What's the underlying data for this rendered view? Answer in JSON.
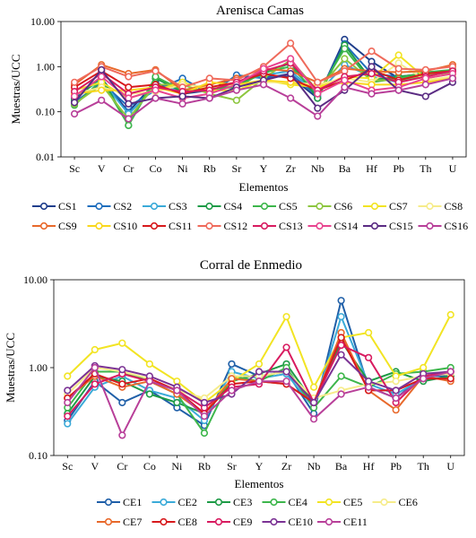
{
  "chart_data": [
    {
      "type": "line",
      "title": "Arenisca Camas",
      "xlabel": "Elementos",
      "ylabel": "Muestras/UCC",
      "yscale": "log",
      "ylim": [
        0.01,
        10
      ],
      "yticks": [
        "0.01",
        "0.10",
        "1.00",
        "10.00"
      ],
      "categories": [
        "Sc",
        "V",
        "Cr",
        "Co",
        "Ni",
        "Rb",
        "Sr",
        "Y",
        "Zr",
        "Nb",
        "Ba",
        "Hf",
        "Pb",
        "Th",
        "U"
      ],
      "legend_position": "bottom",
      "series": [
        {
          "name": "CS1",
          "color": "#1f3e8c",
          "values": [
            0.2,
            0.55,
            0.1,
            0.45,
            0.25,
            0.3,
            0.6,
            0.6,
            0.6,
            0.2,
            4.0,
            1.3,
            0.55,
            0.75,
            0.75
          ]
        },
        {
          "name": "CS2",
          "color": "#1f6ebd",
          "values": [
            0.16,
            0.45,
            0.13,
            0.3,
            0.55,
            0.25,
            0.65,
            0.55,
            0.7,
            0.22,
            3.2,
            0.7,
            0.6,
            0.7,
            0.8
          ]
        },
        {
          "name": "CS3",
          "color": "#3aaad8",
          "values": [
            0.22,
            0.5,
            0.09,
            0.35,
            0.3,
            0.28,
            0.45,
            0.65,
            0.8,
            0.25,
            1.1,
            0.6,
            0.45,
            0.65,
            0.75
          ]
        },
        {
          "name": "CS4",
          "color": "#1e9b47",
          "values": [
            0.18,
            0.6,
            0.05,
            0.55,
            0.28,
            0.3,
            0.4,
            0.7,
            1.2,
            0.2,
            3.0,
            0.5,
            0.6,
            0.7,
            0.8
          ]
        },
        {
          "name": "CS5",
          "color": "#3db64b",
          "values": [
            0.14,
            0.5,
            0.05,
            0.6,
            0.3,
            0.32,
            0.35,
            0.75,
            1.0,
            0.25,
            2.5,
            0.45,
            0.55,
            0.75,
            0.85
          ]
        },
        {
          "name": "CS6",
          "color": "#8dc63f",
          "values": [
            0.15,
            0.4,
            0.07,
            0.4,
            0.4,
            0.25,
            0.18,
            0.55,
            1.4,
            0.3,
            1.5,
            0.5,
            0.5,
            0.65,
            0.75
          ]
        },
        {
          "name": "CS7",
          "color": "#f2e423",
          "values": [
            0.3,
            0.45,
            0.2,
            0.3,
            0.45,
            0.3,
            0.3,
            0.5,
            0.4,
            0.35,
            0.6,
            0.55,
            1.8,
            0.55,
            0.7
          ]
        },
        {
          "name": "CS8",
          "color": "#f6ec8a",
          "values": [
            0.25,
            0.35,
            0.25,
            0.28,
            0.4,
            0.35,
            0.4,
            0.45,
            0.45,
            0.4,
            0.55,
            0.45,
            1.2,
            0.5,
            0.6
          ]
        },
        {
          "name": "CS9",
          "color": "#e8692b",
          "values": [
            0.4,
            1.1,
            0.7,
            0.85,
            0.3,
            0.4,
            0.55,
            0.9,
            0.8,
            0.45,
            0.9,
            0.8,
            0.75,
            0.8,
            1.1
          ]
        },
        {
          "name": "CS10",
          "color": "#f9d71c",
          "values": [
            0.25,
            0.3,
            0.3,
            0.35,
            0.25,
            0.45,
            0.4,
            0.5,
            0.45,
            0.35,
            0.45,
            0.4,
            0.4,
            0.45,
            0.55
          ]
        },
        {
          "name": "CS11",
          "color": "#d7191c",
          "values": [
            0.35,
            0.8,
            0.35,
            0.4,
            0.25,
            0.35,
            0.45,
            0.7,
            0.55,
            0.3,
            0.5,
            0.85,
            0.5,
            0.7,
            0.8
          ]
        },
        {
          "name": "CS12",
          "color": "#ef6a5b",
          "values": [
            0.45,
            1.0,
            0.6,
            0.8,
            0.35,
            0.55,
            0.5,
            1.0,
            3.3,
            0.45,
            0.8,
            2.2,
            0.9,
            0.85,
            1.0
          ]
        },
        {
          "name": "CS13",
          "color": "#d81b60",
          "values": [
            0.28,
            0.7,
            0.25,
            0.35,
            0.28,
            0.3,
            0.45,
            0.8,
            1.2,
            0.3,
            0.6,
            0.7,
            0.45,
            0.6,
            0.8
          ]
        },
        {
          "name": "CS14",
          "color": "#e8448f",
          "values": [
            0.22,
            0.6,
            0.2,
            0.3,
            0.2,
            0.25,
            0.4,
            0.9,
            1.5,
            0.25,
            0.5,
            0.3,
            0.35,
            0.55,
            0.7
          ]
        },
        {
          "name": "CS15",
          "color": "#5b2c83",
          "values": [
            0.16,
            0.85,
            0.15,
            0.2,
            0.22,
            0.2,
            0.35,
            0.5,
            0.7,
            0.12,
            0.3,
            1.0,
            0.3,
            0.22,
            0.45
          ]
        },
        {
          "name": "CS16",
          "color": "#b83f99",
          "values": [
            0.09,
            0.18,
            0.07,
            0.2,
            0.15,
            0.2,
            0.3,
            0.4,
            0.2,
            0.08,
            0.35,
            0.25,
            0.3,
            0.4,
            0.55
          ]
        }
      ]
    },
    {
      "type": "line",
      "title": "Corral de Enmedio",
      "xlabel": "Elementos",
      "ylabel": "Muestras/UCC",
      "yscale": "log",
      "ylim": [
        0.1,
        10
      ],
      "yticks": [
        "0.10",
        "1.00",
        "10.00"
      ],
      "categories": [
        "Sc",
        "V",
        "Cr",
        "Co",
        "Ni",
        "Rb",
        "Sr",
        "Y",
        "Zr",
        "Nb",
        "Ba",
        "Hf",
        "Pb",
        "Th",
        "U"
      ],
      "legend_position": "bottom",
      "series": [
        {
          "name": "CE1",
          "color": "#1f5fa8",
          "values": [
            0.25,
            0.7,
            0.4,
            0.55,
            0.35,
            0.22,
            1.1,
            0.8,
            0.9,
            0.3,
            5.8,
            0.6,
            0.45,
            0.8,
            0.8
          ]
        },
        {
          "name": "CE2",
          "color": "#3aaad8",
          "values": [
            0.23,
            0.6,
            0.8,
            0.55,
            0.45,
            0.25,
            0.9,
            0.75,
            0.85,
            0.35,
            3.8,
            0.65,
            0.5,
            0.75,
            0.75
          ]
        },
        {
          "name": "CE3",
          "color": "#1e9b47",
          "values": [
            0.3,
            0.8,
            0.7,
            0.5,
            0.4,
            0.3,
            0.7,
            0.85,
            1.1,
            0.4,
            2.0,
            0.7,
            0.9,
            0.7,
            0.8
          ]
        },
        {
          "name": "CE4",
          "color": "#3db64b",
          "values": [
            0.35,
            0.9,
            0.9,
            0.7,
            0.5,
            0.18,
            0.8,
            0.7,
            1.0,
            0.35,
            0.8,
            0.6,
            0.85,
            0.9,
            1.0
          ]
        },
        {
          "name": "CE5",
          "color": "#f2e423",
          "values": [
            0.8,
            1.6,
            1.9,
            1.1,
            0.7,
            0.4,
            0.7,
            1.1,
            3.8,
            0.6,
            2.2,
            2.5,
            0.8,
            1.0,
            4.0
          ]
        },
        {
          "name": "CE6",
          "color": "#f6ec8a",
          "values": [
            0.5,
            1.0,
            0.9,
            0.75,
            0.55,
            0.45,
            0.8,
            0.8,
            0.9,
            0.45,
            0.55,
            0.65,
            0.7,
            0.8,
            0.85
          ]
        },
        {
          "name": "CE7",
          "color": "#e8692b",
          "values": [
            0.45,
            0.8,
            0.6,
            0.7,
            0.5,
            0.3,
            0.75,
            0.7,
            0.65,
            0.4,
            2.5,
            0.55,
            0.33,
            0.8,
            0.7
          ]
        },
        {
          "name": "CE8",
          "color": "#d7191c",
          "values": [
            0.45,
            0.85,
            0.65,
            0.75,
            0.55,
            0.3,
            0.65,
            0.7,
            0.65,
            0.4,
            2.2,
            0.55,
            0.55,
            0.75,
            0.75
          ]
        },
        {
          "name": "CE9",
          "color": "#d81b60",
          "values": [
            0.28,
            0.65,
            0.85,
            0.7,
            0.55,
            0.35,
            0.6,
            0.65,
            1.7,
            0.4,
            1.8,
            1.3,
            0.4,
            0.8,
            0.9
          ]
        },
        {
          "name": "CE10",
          "color": "#7b3294",
          "values": [
            0.55,
            1.05,
            0.95,
            0.8,
            0.6,
            0.4,
            0.5,
            0.9,
            0.9,
            0.4,
            1.4,
            0.7,
            0.55,
            0.85,
            0.9
          ]
        },
        {
          "name": "CE11",
          "color": "#b83f99",
          "values": [
            0.4,
            1.0,
            0.17,
            0.7,
            0.55,
            0.28,
            0.55,
            0.7,
            0.7,
            0.26,
            0.5,
            0.6,
            0.45,
            0.75,
            0.9
          ]
        }
      ]
    }
  ]
}
